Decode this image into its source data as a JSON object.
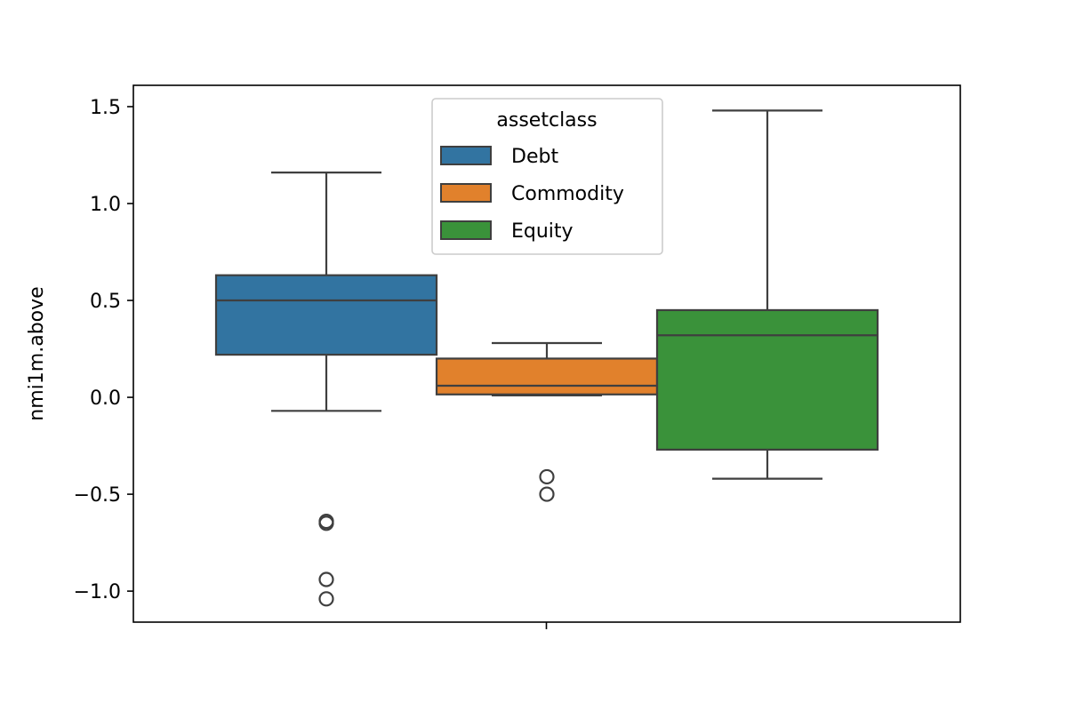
{
  "chart_data": {
    "type": "box",
    "title": "",
    "xlabel": "",
    "ylabel": "nmi1m.above",
    "ylim": [
      -1.16,
      1.61
    ],
    "yticks": [
      -1.0,
      -0.5,
      0.0,
      0.5,
      1.0,
      1.5
    ],
    "ytick_labels": [
      "−1.0",
      "−0.5",
      "0.0",
      "0.5",
      "1.0",
      "1.5"
    ],
    "grid": false,
    "legend": {
      "title": "assetclass",
      "position": "upper-center",
      "entries": [
        "Debt",
        "Commodity",
        "Equity"
      ]
    },
    "series": [
      {
        "name": "Debt",
        "color": "#3274a1",
        "whisker_low": -0.07,
        "q1": 0.22,
        "median": 0.5,
        "q3": 0.63,
        "whisker_high": 1.16,
        "outliers": [
          -0.64,
          -0.65,
          -0.94,
          -1.04
        ]
      },
      {
        "name": "Commodity",
        "color": "#e1812c",
        "whisker_low": 0.01,
        "q1": 0.015,
        "median": 0.06,
        "q3": 0.2,
        "whisker_high": 0.28,
        "outliers": [
          -0.41,
          -0.5
        ]
      },
      {
        "name": "Equity",
        "color": "#3a923a",
        "whisker_low": -0.42,
        "q1": -0.27,
        "median": 0.32,
        "q3": 0.45,
        "whisker_high": 1.48,
        "outliers": []
      }
    ]
  }
}
